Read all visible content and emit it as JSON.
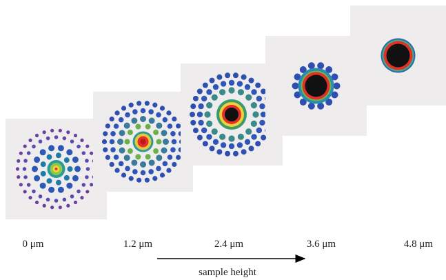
{
  "panel_labels": [
    "0 μm",
    "1.2 μm",
    "2.4 μm",
    "3.6 μm",
    "4.8 μm"
  ],
  "arrow_label": "sample height"
}
